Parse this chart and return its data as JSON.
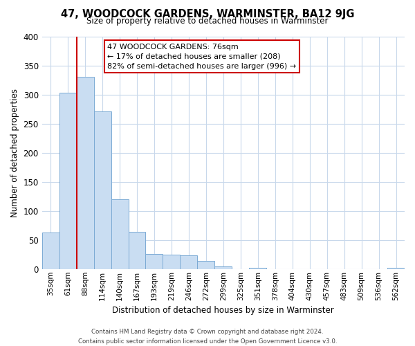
{
  "title": "47, WOODCOCK GARDENS, WARMINSTER, BA12 9JG",
  "subtitle": "Size of property relative to detached houses in Warminster",
  "xlabel": "Distribution of detached houses by size in Warminster",
  "ylabel": "Number of detached properties",
  "bar_labels": [
    "35sqm",
    "61sqm",
    "88sqm",
    "114sqm",
    "140sqm",
    "167sqm",
    "193sqm",
    "219sqm",
    "246sqm",
    "272sqm",
    "299sqm",
    "325sqm",
    "351sqm",
    "378sqm",
    "404sqm",
    "430sqm",
    "457sqm",
    "483sqm",
    "509sqm",
    "536sqm",
    "562sqm"
  ],
  "bar_heights": [
    63,
    303,
    330,
    271,
    120,
    64,
    26,
    25,
    23,
    14,
    4,
    0,
    2,
    0,
    0,
    0,
    0,
    0,
    0,
    0,
    2
  ],
  "bar_color": "#c9ddf2",
  "bar_edge_color": "#7baad4",
  "reference_line_color": "#cc0000",
  "ylim": [
    0,
    400
  ],
  "yticks": [
    0,
    50,
    100,
    150,
    200,
    250,
    300,
    350,
    400
  ],
  "annotation_title": "47 WOODCOCK GARDENS: 76sqm",
  "annotation_line1": "← 17% of detached houses are smaller (208)",
  "annotation_line2": "82% of semi-detached houses are larger (996) →",
  "footnote1": "Contains HM Land Registry data © Crown copyright and database right 2024.",
  "footnote2": "Contains public sector information licensed under the Open Government Licence v3.0.",
  "background_color": "#ffffff",
  "grid_color": "#c8d8eb"
}
